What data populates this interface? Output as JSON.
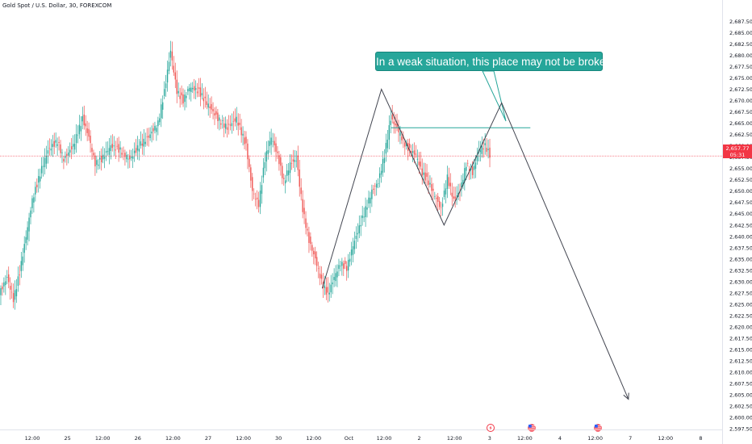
{
  "header": {
    "title": "Gold Spot / U.S. Dollar, 30, FOREXCOM"
  },
  "annotation": {
    "text": "In a weak situation, this place may not be broken"
  },
  "current_price": {
    "price": "2,657.77",
    "countdown": "05:31"
  },
  "colors": {
    "up": "#26a69a",
    "down": "#ef5350",
    "callout": "#26a69a",
    "price_line": "#f23645",
    "projection": "#434651"
  },
  "event_icons": [
    "lightning-icon",
    "us-flag-icon",
    "us-flag-icon"
  ],
  "chart_data": {
    "type": "candlestick",
    "title": "Gold Spot / U.S. Dollar, 30, FOREXCOM",
    "ylim": [
      2597.5,
      2690.0
    ],
    "y_ticks": [
      "2,687.50",
      "2,685.00",
      "2,682.50",
      "2,680.00",
      "2,677.50",
      "2,675.00",
      "2,672.50",
      "2,670.00",
      "2,667.50",
      "2,665.00",
      "2,662.50",
      "2,660.00",
      "2,657.50",
      "2,655.00",
      "2,652.50",
      "2,650.00",
      "2,647.50",
      "2,645.00",
      "2,642.50",
      "2,640.00",
      "2,637.50",
      "2,635.00",
      "2,632.50",
      "2,630.00",
      "2,627.50",
      "2,625.00",
      "2,622.50",
      "2,620.00",
      "2,617.50",
      "2,615.00",
      "2,612.50",
      "2,610.00",
      "2,607.50",
      "2,605.00",
      "2,602.50",
      "2,600.00",
      "2,597.50"
    ],
    "x_ticks": [
      "12:00",
      "25",
      "12:00",
      "26",
      "12:00",
      "27",
      "12:00",
      "30",
      "12:00",
      "Oct",
      "12:00",
      "2",
      "12:00",
      "3",
      "12:00",
      "4",
      "12:00",
      "7",
      "12:00",
      "8"
    ],
    "current_price": 2657.77,
    "anchors": [
      [
        0,
        2628
      ],
      [
        4,
        2631
      ],
      [
        8,
        2626
      ],
      [
        12,
        2632
      ],
      [
        16,
        2640
      ],
      [
        20,
        2648
      ],
      [
        26,
        2655
      ],
      [
        30,
        2659
      ],
      [
        36,
        2661
      ],
      [
        40,
        2657
      ],
      [
        46,
        2660
      ],
      [
        52,
        2666
      ],
      [
        56,
        2662
      ],
      [
        60,
        2656
      ],
      [
        64,
        2657
      ],
      [
        70,
        2660
      ],
      [
        76,
        2659
      ],
      [
        82,
        2657
      ],
      [
        88,
        2660
      ],
      [
        94,
        2662
      ],
      [
        100,
        2665
      ],
      [
        104,
        2672
      ],
      [
        108,
        2681
      ],
      [
        112,
        2672
      ],
      [
        116,
        2670
      ],
      [
        120,
        2673
      ],
      [
        126,
        2672
      ],
      [
        132,
        2669
      ],
      [
        138,
        2666
      ],
      [
        144,
        2664
      ],
      [
        150,
        2666
      ],
      [
        156,
        2660
      ],
      [
        160,
        2650
      ],
      [
        164,
        2647
      ],
      [
        168,
        2657
      ],
      [
        172,
        2662
      ],
      [
        176,
        2658
      ],
      [
        180,
        2652
      ],
      [
        184,
        2656
      ],
      [
        188,
        2657
      ],
      [
        192,
        2646
      ],
      [
        196,
        2639
      ],
      [
        200,
        2635
      ],
      [
        204,
        2630
      ],
      [
        208,
        2627
      ],
      [
        212,
        2631
      ],
      [
        216,
        2634
      ],
      [
        220,
        2633
      ],
      [
        224,
        2638
      ],
      [
        228,
        2642
      ],
      [
        232,
        2646
      ],
      [
        236,
        2650
      ],
      [
        240,
        2652
      ],
      [
        244,
        2658
      ],
      [
        248,
        2666
      ],
      [
        252,
        2664
      ],
      [
        256,
        2661
      ],
      [
        260,
        2659
      ],
      [
        264,
        2658
      ],
      [
        268,
        2654
      ],
      [
        272,
        2652
      ],
      [
        276,
        2649
      ],
      [
        280,
        2646
      ],
      [
        284,
        2653
      ],
      [
        288,
        2648
      ],
      [
        292,
        2650
      ],
      [
        296,
        2656
      ],
      [
        300,
        2654
      ],
      [
        304,
        2659
      ],
      [
        308,
        2660
      ],
      [
        311,
        2658
      ]
    ],
    "drawings": {
      "resistance_line": [
        [
          0.5417,
          2664.0
        ],
        [
          0.7344,
          2664.0
        ]
      ],
      "support_label": "In a weak situation, this place may not be broken",
      "projection_path": [
        [
          0.4462,
          2628.5
        ],
        [
          0.5282,
          2672.5
        ],
        [
          0.6149,
          2642.5
        ],
        [
          0.6947,
          2669.5
        ],
        [
          0.8702,
          2604.0
        ]
      ]
    }
  }
}
